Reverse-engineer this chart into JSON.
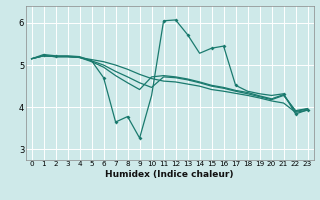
{
  "xlabel": "Humidex (Indice chaleur)",
  "bg_color": "#cee9e9",
  "grid_color": "#b8d8d8",
  "line_color": "#1a7a6e",
  "xlim": [
    -0.5,
    23.5
  ],
  "ylim": [
    2.75,
    6.4
  ],
  "xticks": [
    0,
    1,
    2,
    3,
    4,
    5,
    6,
    7,
    8,
    9,
    10,
    11,
    12,
    13,
    14,
    15,
    16,
    17,
    18,
    19,
    20,
    21,
    22,
    23
  ],
  "yticks": [
    3,
    4,
    5,
    6
  ],
  "series": [
    {
      "x": [
        0,
        1,
        2,
        3,
        4,
        5,
        6,
        7,
        8,
        9,
        10,
        11,
        12,
        13,
        14,
        15,
        16,
        17,
        18,
        19,
        20,
        21,
        22,
        23
      ],
      "y": [
        5.15,
        5.22,
        5.2,
        5.2,
        5.18,
        5.13,
        5.08,
        5.0,
        4.9,
        4.78,
        4.68,
        4.62,
        4.6,
        4.55,
        4.5,
        4.42,
        4.38,
        4.33,
        4.28,
        4.22,
        4.15,
        4.1,
        3.88,
        3.93
      ]
    },
    {
      "x": [
        0,
        1,
        2,
        3,
        4,
        5,
        6,
        7,
        8,
        9,
        10,
        11,
        12,
        13,
        14,
        15,
        16,
        17,
        18,
        19,
        20,
        21,
        22,
        23
      ],
      "y": [
        5.15,
        5.22,
        5.2,
        5.2,
        5.18,
        5.1,
        5.0,
        4.85,
        4.72,
        4.58,
        4.47,
        4.72,
        4.7,
        4.65,
        4.58,
        4.5,
        4.45,
        4.38,
        4.32,
        4.25,
        4.18,
        4.28,
        3.92,
        3.97
      ]
    },
    {
      "x": [
        0,
        1,
        2,
        3,
        4,
        5,
        6,
        7,
        8,
        9,
        10,
        11,
        12,
        13,
        14,
        15,
        16,
        17,
        18,
        19,
        20,
        21,
        22,
        23
      ],
      "y": [
        5.15,
        5.22,
        5.2,
        5.2,
        5.18,
        5.08,
        4.95,
        4.75,
        4.58,
        4.42,
        4.72,
        4.75,
        4.72,
        4.67,
        4.6,
        4.52,
        4.47,
        4.4,
        4.35,
        4.27,
        4.2,
        4.3,
        3.9,
        3.96
      ]
    },
    {
      "x": [
        0,
        1,
        2,
        3,
        4,
        5,
        6,
        7,
        8,
        9,
        10,
        11,
        12,
        13,
        14,
        15,
        16,
        17,
        18,
        19,
        20,
        21,
        22,
        23
      ],
      "y": [
        5.15,
        5.25,
        5.22,
        5.22,
        5.2,
        5.1,
        4.7,
        3.65,
        3.78,
        3.27,
        4.28,
        6.05,
        6.07,
        5.72,
        5.28,
        5.4,
        5.45,
        4.52,
        4.38,
        4.32,
        4.28,
        4.32,
        3.84,
        3.94
      ]
    }
  ]
}
